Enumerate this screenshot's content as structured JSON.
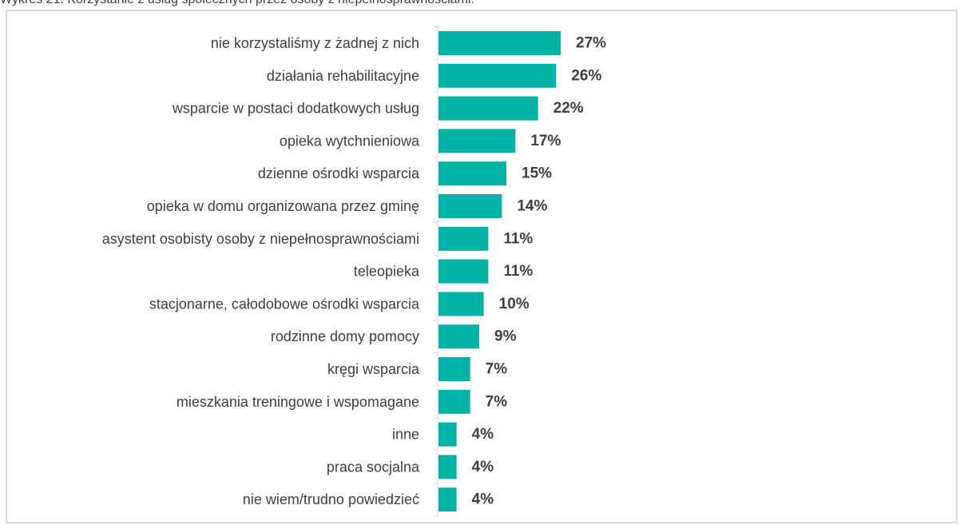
{
  "caption": "Wykres 21. Korzystanie z usług społecznych przez osoby z niepełnosprawnościami.",
  "chart_data": {
    "type": "bar",
    "orientation": "horizontal",
    "title": "",
    "xlabel": "",
    "ylabel": "",
    "xlim": [
      0,
      27
    ],
    "grid": false,
    "bar_color": "#00b3a4",
    "categories": [
      "nie korzystaliśmy z żadnej z nich",
      "działania rehabilitacyjne",
      "wsparcie w postaci dodatkowych usług",
      "opieka wytchnieniowa",
      "dzienne ośrodki wsparcia",
      "opieka w domu organizowana przez gminę",
      "asystent osobisty osoby z niepełnosprawnościami",
      "teleopieka",
      "stacjonarne, całodobowe ośrodki wsparcia",
      "rodzinne domy pomocy",
      "kręgi wsparcia",
      "mieszkania treningowe i wspomagane",
      "inne",
      "praca socjalna",
      "nie wiem/trudno powiedzieć"
    ],
    "values": [
      27,
      26,
      22,
      17,
      15,
      14,
      11,
      11,
      10,
      9,
      7,
      7,
      4,
      4,
      4
    ],
    "value_labels": [
      "27%",
      "26%",
      "22%",
      "17%",
      "15%",
      "14%",
      "11%",
      "11%",
      "10%",
      "9%",
      "7%",
      "7%",
      "4%",
      "4%",
      "4%"
    ]
  }
}
